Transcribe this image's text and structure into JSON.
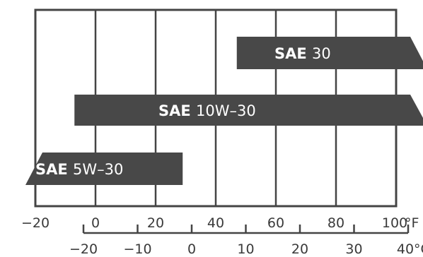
{
  "chart_data": {
    "type": "bar",
    "orientation": "horizontal-range",
    "grid": true,
    "fahrenheit_axis": {
      "min": -20,
      "max": 100,
      "ticks": [
        "-20",
        "0",
        "20",
        "40",
        "60",
        "80",
        "100"
      ],
      "unit": "°F"
    },
    "celsius_axis": {
      "min": -20,
      "max": 40,
      "ticks": [
        "-20",
        "-10",
        "0",
        "10",
        "20",
        "30",
        "40"
      ],
      "unit": "°C"
    },
    "bars": [
      {
        "prefix": "SAE",
        "grade": "30",
        "from_f": 47,
        "to_f": 100,
        "open_end": "right"
      },
      {
        "prefix": "SAE",
        "grade": "10W-30",
        "from_f": -7,
        "to_f": 100,
        "open_end": "right"
      },
      {
        "prefix": "SAE",
        "grade": "5W-30",
        "from_f": -20,
        "to_f": 29,
        "open_end": "left"
      }
    ],
    "colors": {
      "bar": "#484848",
      "grid": "#444444",
      "text": "#3a3a3a",
      "bar_text": "#ffffff"
    }
  }
}
